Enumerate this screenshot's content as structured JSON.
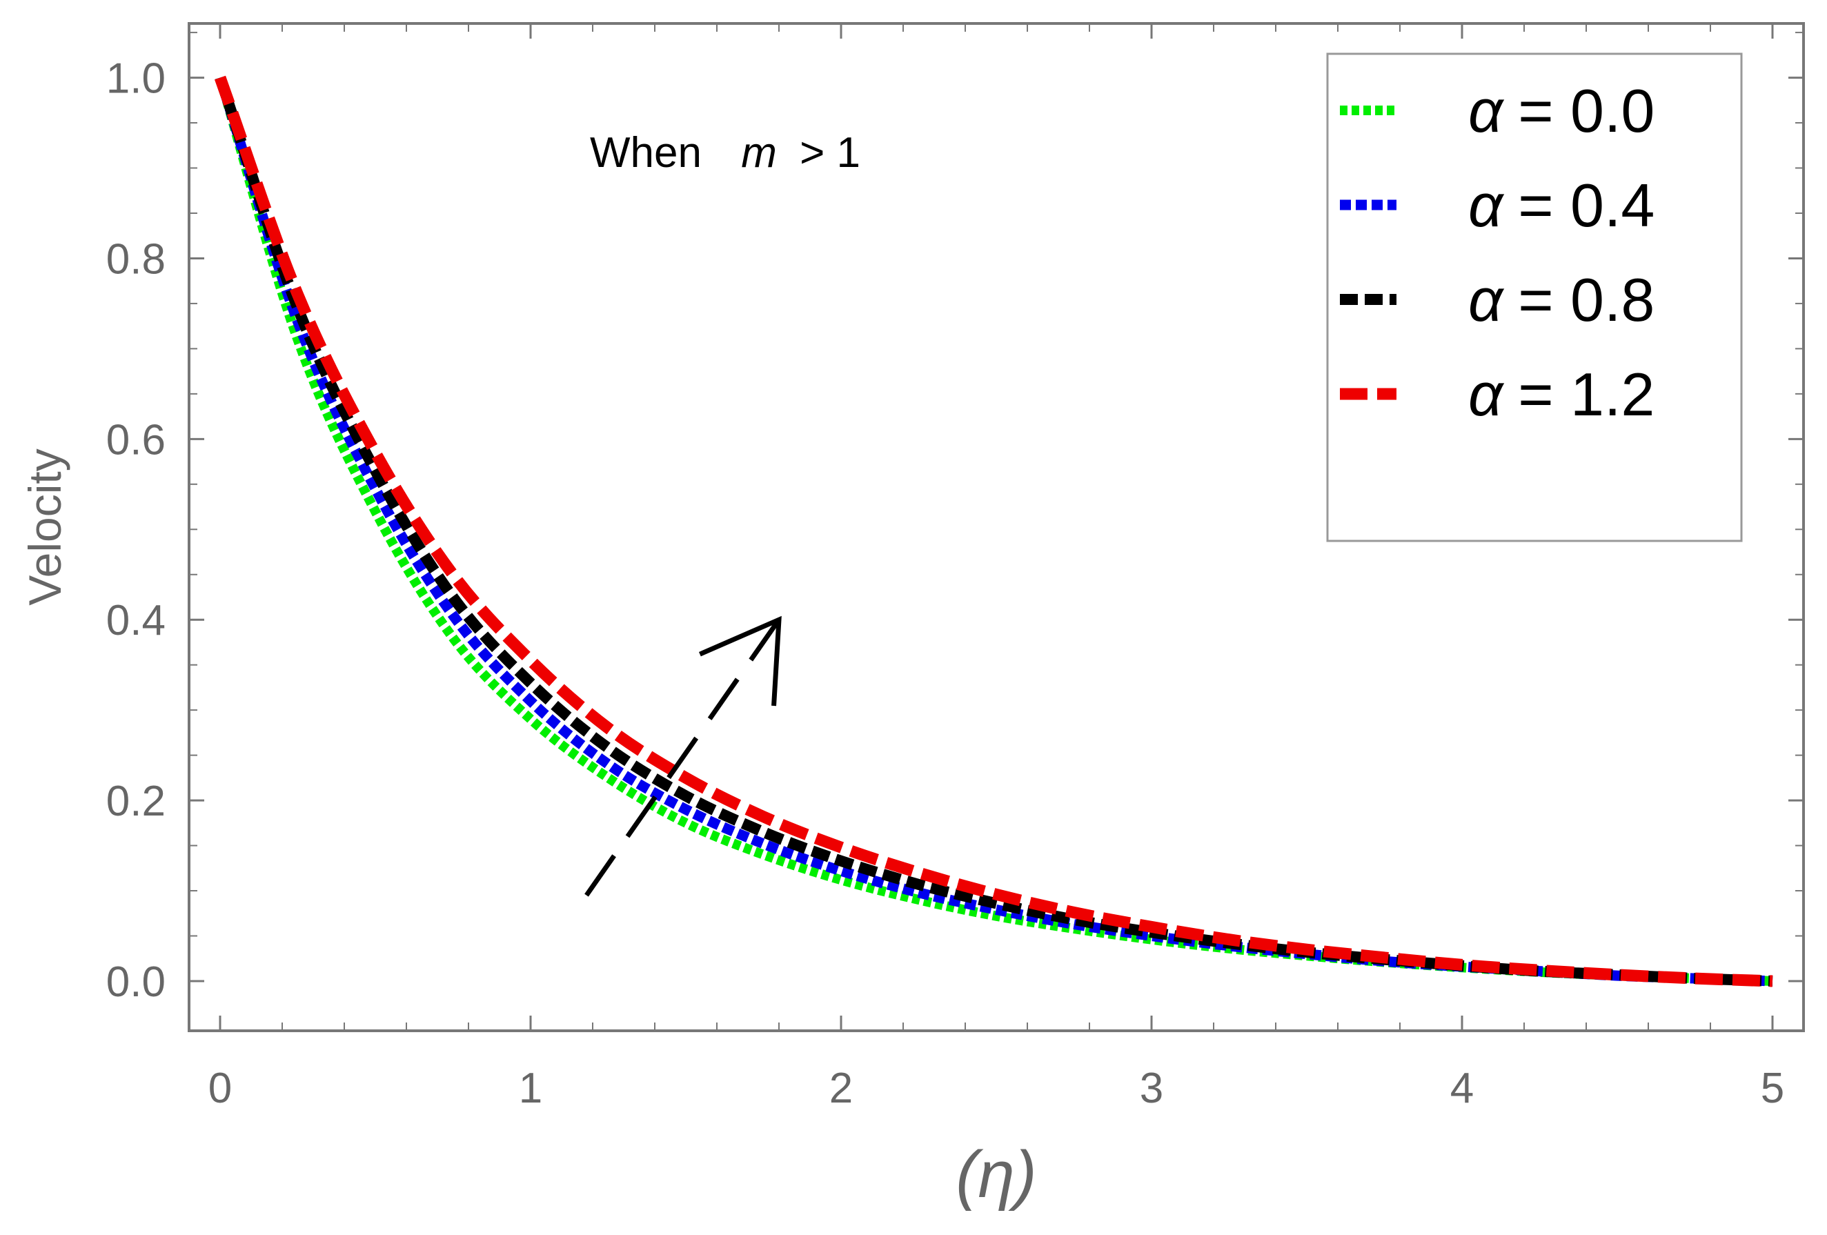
{
  "chart_data": {
    "type": "line",
    "title": "",
    "xlabel": "(η)",
    "ylabel": "Velocity",
    "xlim": [
      -0.1,
      5.1
    ],
    "ylim": [
      -0.055,
      1.06
    ],
    "x_ticks": [
      0,
      1,
      2,
      3,
      4,
      5
    ],
    "x_tick_labels": [
      "0",
      "1",
      "2",
      "3",
      "4",
      "5"
    ],
    "y_ticks": [
      0.0,
      0.2,
      0.4,
      0.6,
      0.8,
      1.0
    ],
    "y_tick_labels": [
      "0.0",
      "0.2",
      "0.4",
      "0.6",
      "0.8",
      "1.0"
    ],
    "grid": false,
    "legend_position": "top-right",
    "annotation": {
      "text_before": "When",
      "italic_var": "m",
      "text_after": "> 1"
    },
    "trend_arrow": {
      "meaning": "increasing α",
      "from": [
        1.18,
        0.095
      ],
      "to": [
        1.8,
        0.4
      ]
    },
    "x": [
      0,
      0.25,
      0.5,
      0.75,
      1.0,
      1.25,
      1.5,
      1.75,
      2.0,
      2.25,
      2.5,
      2.75,
      3.0,
      3.25,
      3.5,
      3.75,
      4.0,
      4.25,
      4.5,
      4.75,
      5.0
    ],
    "series": [
      {
        "name": "α = 0.0",
        "label_prefix": "α",
        "label_value": "= 0.0",
        "color": "#00ee00",
        "values": [
          1.0,
          0.71,
          0.52,
          0.38,
          0.29,
          0.225,
          0.175,
          0.14,
          0.112,
          0.09,
          0.072,
          0.058,
          0.046,
          0.036,
          0.028,
          0.021,
          0.015,
          0.01,
          0.006,
          0.003,
          0.0
        ]
      },
      {
        "name": "α = 0.4",
        "label_prefix": "α",
        "label_value": "= 0.4",
        "color": "#0000ee",
        "values": [
          1.0,
          0.73,
          0.545,
          0.405,
          0.31,
          0.24,
          0.19,
          0.152,
          0.122,
          0.098,
          0.079,
          0.063,
          0.05,
          0.039,
          0.03,
          0.022,
          0.016,
          0.011,
          0.006,
          0.003,
          0.0
        ]
      },
      {
        "name": "α = 0.8",
        "label_prefix": "α",
        "label_value": "= 0.8",
        "color": "#000000",
        "values": [
          1.0,
          0.745,
          0.565,
          0.425,
          0.33,
          0.258,
          0.205,
          0.165,
          0.133,
          0.107,
          0.086,
          0.068,
          0.054,
          0.042,
          0.032,
          0.024,
          0.017,
          0.011,
          0.007,
          0.003,
          0.0
        ]
      },
      {
        "name": "α = 1.2",
        "label_prefix": "α",
        "label_value": "= 1.2",
        "color": "#ee0000",
        "values": [
          1.0,
          0.76,
          0.585,
          0.45,
          0.355,
          0.28,
          0.225,
          0.182,
          0.148,
          0.12,
          0.096,
          0.076,
          0.06,
          0.046,
          0.035,
          0.026,
          0.018,
          0.012,
          0.007,
          0.003,
          0.0
        ]
      }
    ]
  }
}
